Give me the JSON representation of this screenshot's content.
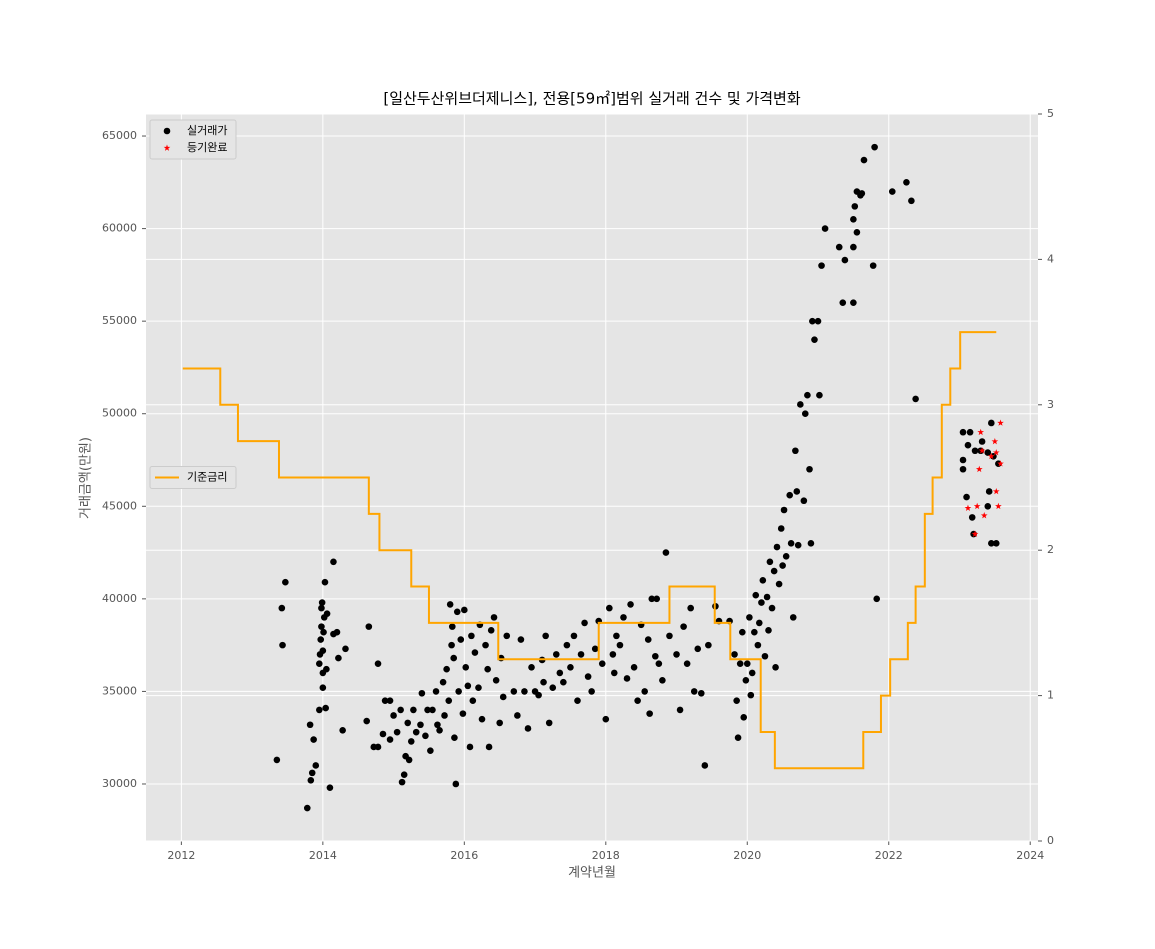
{
  "chart_data": {
    "type": "scatter",
    "title": "[일산두산위브더제니스], 전용[59㎡]범위 실거래 건수 및 가격변화",
    "xlabel": "계약년월",
    "ylabel": "거래금액(만원)",
    "xlim": [
      2011.5,
      2024.11
    ],
    "xticks": [
      2012,
      2014,
      2016,
      2018,
      2020,
      2022,
      2024
    ],
    "ylim": [
      26920,
      66190
    ],
    "yticks": [
      30000,
      35000,
      40000,
      45000,
      50000,
      55000,
      60000,
      65000
    ],
    "y2lim": [
      0,
      5
    ],
    "y2ticks": [
      0,
      1,
      2,
      3,
      4,
      5
    ],
    "grid": true,
    "series": [
      {
        "name": "실거래가",
        "type": "scatter",
        "marker": "circle",
        "color": "#000000",
        "legend": "upper left",
        "x": [
          2013.35,
          2013.42,
          2013.43,
          2013.47,
          2013.78,
          2013.82,
          2013.83,
          2013.85,
          2013.87,
          2013.9,
          2013.95,
          2013.95,
          2013.96,
          2013.97,
          2013.98,
          2013.98,
          2013.99,
          2014.0,
          2014.0,
          2014.0,
          2014.01,
          2014.02,
          2014.03,
          2014.04,
          2014.05,
          2014.06,
          2014.1,
          2014.15,
          2014.15,
          2014.2,
          2014.22,
          2014.28,
          2014.32,
          2014.62,
          2014.65,
          2014.72,
          2014.78,
          2014.78,
          2014.85,
          2014.88,
          2014.95,
          2014.95,
          2015.0,
          2015.05,
          2015.1,
          2015.12,
          2015.15,
          2015.17,
          2015.2,
          2015.22,
          2015.25,
          2015.28,
          2015.32,
          2015.38,
          2015.4,
          2015.45,
          2015.48,
          2015.52,
          2015.55,
          2015.6,
          2015.62,
          2015.65,
          2015.7,
          2015.72,
          2015.75,
          2015.78,
          2015.8,
          2015.82,
          2015.83,
          2015.85,
          2015.86,
          2015.88,
          2015.9,
          2015.92,
          2015.95,
          2015.98,
          2016.0,
          2016.02,
          2016.05,
          2016.08,
          2016.1,
          2016.12,
          2016.15,
          2016.2,
          2016.22,
          2016.25,
          2016.3,
          2016.33,
          2016.35,
          2016.38,
          2016.42,
          2016.45,
          2016.5,
          2016.52,
          2016.55,
          2016.6,
          2016.7,
          2016.75,
          2016.8,
          2016.85,
          2016.9,
          2016.95,
          2017.0,
          2017.05,
          2017.1,
          2017.12,
          2017.15,
          2017.2,
          2017.25,
          2017.3,
          2017.35,
          2017.4,
          2017.45,
          2017.5,
          2017.55,
          2017.6,
          2017.65,
          2017.7,
          2017.75,
          2017.8,
          2017.85,
          2017.9,
          2017.95,
          2018.0,
          2018.05,
          2018.1,
          2018.12,
          2018.15,
          2018.2,
          2018.25,
          2018.3,
          2018.35,
          2018.4,
          2018.45,
          2018.5,
          2018.55,
          2018.6,
          2018.62,
          2018.65,
          2018.7,
          2018.72,
          2018.75,
          2018.8,
          2018.85,
          2018.9,
          2019.0,
          2019.05,
          2019.1,
          2019.15,
          2019.2,
          2019.25,
          2019.3,
          2019.35,
          2019.4,
          2019.45,
          2019.55,
          2019.6,
          2019.75,
          2019.82,
          2019.85,
          2019.87,
          2019.9,
          2019.93,
          2019.95,
          2019.98,
          2020.0,
          2020.03,
          2020.05,
          2020.07,
          2020.1,
          2020.12,
          2020.15,
          2020.17,
          2020.2,
          2020.22,
          2020.25,
          2020.28,
          2020.3,
          2020.32,
          2020.35,
          2020.38,
          2020.4,
          2020.42,
          2020.45,
          2020.48,
          2020.5,
          2020.52,
          2020.55,
          2020.6,
          2020.62,
          2020.65,
          2020.68,
          2020.7,
          2020.72,
          2020.75,
          2020.8,
          2020.82,
          2020.85,
          2020.88,
          2020.9,
          2020.92,
          2020.95,
          2021.0,
          2021.02,
          2021.05,
          2021.1,
          2021.3,
          2021.35,
          2021.38,
          2021.5,
          2021.5,
          2021.5,
          2021.52,
          2021.55,
          2021.55,
          2021.6,
          2021.62,
          2021.65,
          2021.78,
          2021.8,
          2021.83,
          2022.05,
          2022.25,
          2022.32,
          2022.38,
          2023.05,
          2023.05,
          2023.05,
          2023.1,
          2023.12,
          2023.15,
          2023.18,
          2023.2,
          2023.22,
          2023.3,
          2023.32,
          2023.4,
          2023.45,
          2023.48,
          2023.42,
          2023.4,
          2023.45,
          2023.52,
          2023.55
        ],
        "values": [
          31300,
          39500,
          37500,
          40900,
          28700,
          33200,
          30200,
          30600,
          32400,
          31000,
          34000,
          36500,
          37000,
          37800,
          38500,
          39500,
          39800,
          36000,
          35200,
          37200,
          38200,
          39000,
          40900,
          34100,
          36200,
          39200,
          29800,
          42000,
          38100,
          38200,
          36800,
          32900,
          37300,
          33400,
          38500,
          32000,
          32000,
          36500,
          32700,
          34500,
          34500,
          32400,
          33700,
          32800,
          34000,
          30100,
          30500,
          31500,
          33300,
          31300,
          32300,
          34000,
          32800,
          33200,
          34900,
          32600,
          34000,
          31800,
          34000,
          35000,
          33200,
          32900,
          35500,
          33700,
          36200,
          34500,
          39700,
          37500,
          38500,
          36800,
          32500,
          30000,
          39300,
          35000,
          37800,
          33800,
          39400,
          36300,
          35300,
          32000,
          38000,
          34500,
          37100,
          35200,
          38600,
          33500,
          37500,
          36200,
          32000,
          38300,
          39000,
          35600,
          33300,
          36800,
          34700,
          38000,
          35000,
          33700,
          37800,
          35000,
          33000,
          36300,
          35000,
          34800,
          36700,
          35500,
          38000,
          33300,
          35200,
          37000,
          36000,
          35500,
          37500,
          36300,
          38000,
          34500,
          37000,
          38700,
          35800,
          35000,
          37300,
          38800,
          36500,
          33500,
          39500,
          37000,
          36000,
          38000,
          37500,
          39000,
          35700,
          39700,
          36300,
          34500,
          38600,
          35000,
          37800,
          33800,
          40000,
          36900,
          40000,
          36500,
          35600,
          42500,
          38000,
          37000,
          34000,
          38500,
          36500,
          39500,
          35000,
          37300,
          34900,
          31000,
          37500,
          39600,
          38800,
          38800,
          37000,
          34500,
          32500,
          36500,
          38200,
          33600,
          35600,
          36500,
          39000,
          34800,
          36000,
          38200,
          40200,
          37500,
          38700,
          39800,
          41000,
          36900,
          40100,
          38300,
          42000,
          39500,
          41500,
          36300,
          42800,
          40800,
          43800,
          41800,
          44800,
          42300,
          45600,
          43000,
          39000,
          48000,
          45800,
          42900,
          50500,
          45300,
          50000,
          51000,
          47000,
          43000,
          55000,
          54000,
          55000,
          51000,
          58000,
          60000,
          59000,
          56000,
          58300,
          56000,
          59000,
          60500,
          61200,
          62000,
          59800,
          61800,
          61900,
          63700,
          58000,
          64400,
          40000,
          62000,
          62500,
          61500,
          50800,
          49000,
          47500,
          47000,
          45500,
          48300,
          49000,
          44400,
          43500,
          48000,
          48000,
          48500,
          47900,
          49500,
          47700,
          45800,
          45000,
          43000,
          43000,
          47300
        ]
      },
      {
        "name": "등기완료",
        "type": "scatter",
        "marker": "star",
        "color": "#ff0000",
        "legend": "upper left",
        "x": [
          2023.12,
          2023.22,
          2023.25,
          2023.28,
          2023.3,
          2023.32,
          2023.35,
          2023.45,
          2023.5,
          2023.52,
          2023.52,
          2023.55,
          2023.58,
          2023.58
        ],
        "values": [
          44900,
          43500,
          45000,
          47000,
          49000,
          48000,
          44500,
          47700,
          48500,
          47900,
          45800,
          45000,
          47300,
          49500
        ]
      },
      {
        "name": "기준금리",
        "type": "step",
        "axis": "y2",
        "color": "#ffa500",
        "legend": "center left",
        "x": [
          2012.02,
          2012.55,
          2012.8,
          2013.38,
          2014.65,
          2014.8,
          2015.25,
          2015.5,
          2016.48,
          2017.9,
          2018.9,
          2019.54,
          2019.76,
          2020.19,
          2020.39,
          2021.64,
          2021.89,
          2022.02,
          2022.27,
          2022.38,
          2022.51,
          2022.62,
          2022.75,
          2022.87,
          2023.01,
          2023.52
        ],
        "values": [
          3.25,
          3.0,
          2.75,
          2.5,
          2.25,
          2.0,
          1.75,
          1.5,
          1.25,
          1.5,
          1.75,
          1.5,
          1.25,
          0.75,
          0.5,
          0.75,
          1.0,
          1.25,
          1.5,
          1.75,
          2.25,
          2.5,
          3.0,
          3.25,
          3.5,
          3.5
        ]
      }
    ]
  }
}
